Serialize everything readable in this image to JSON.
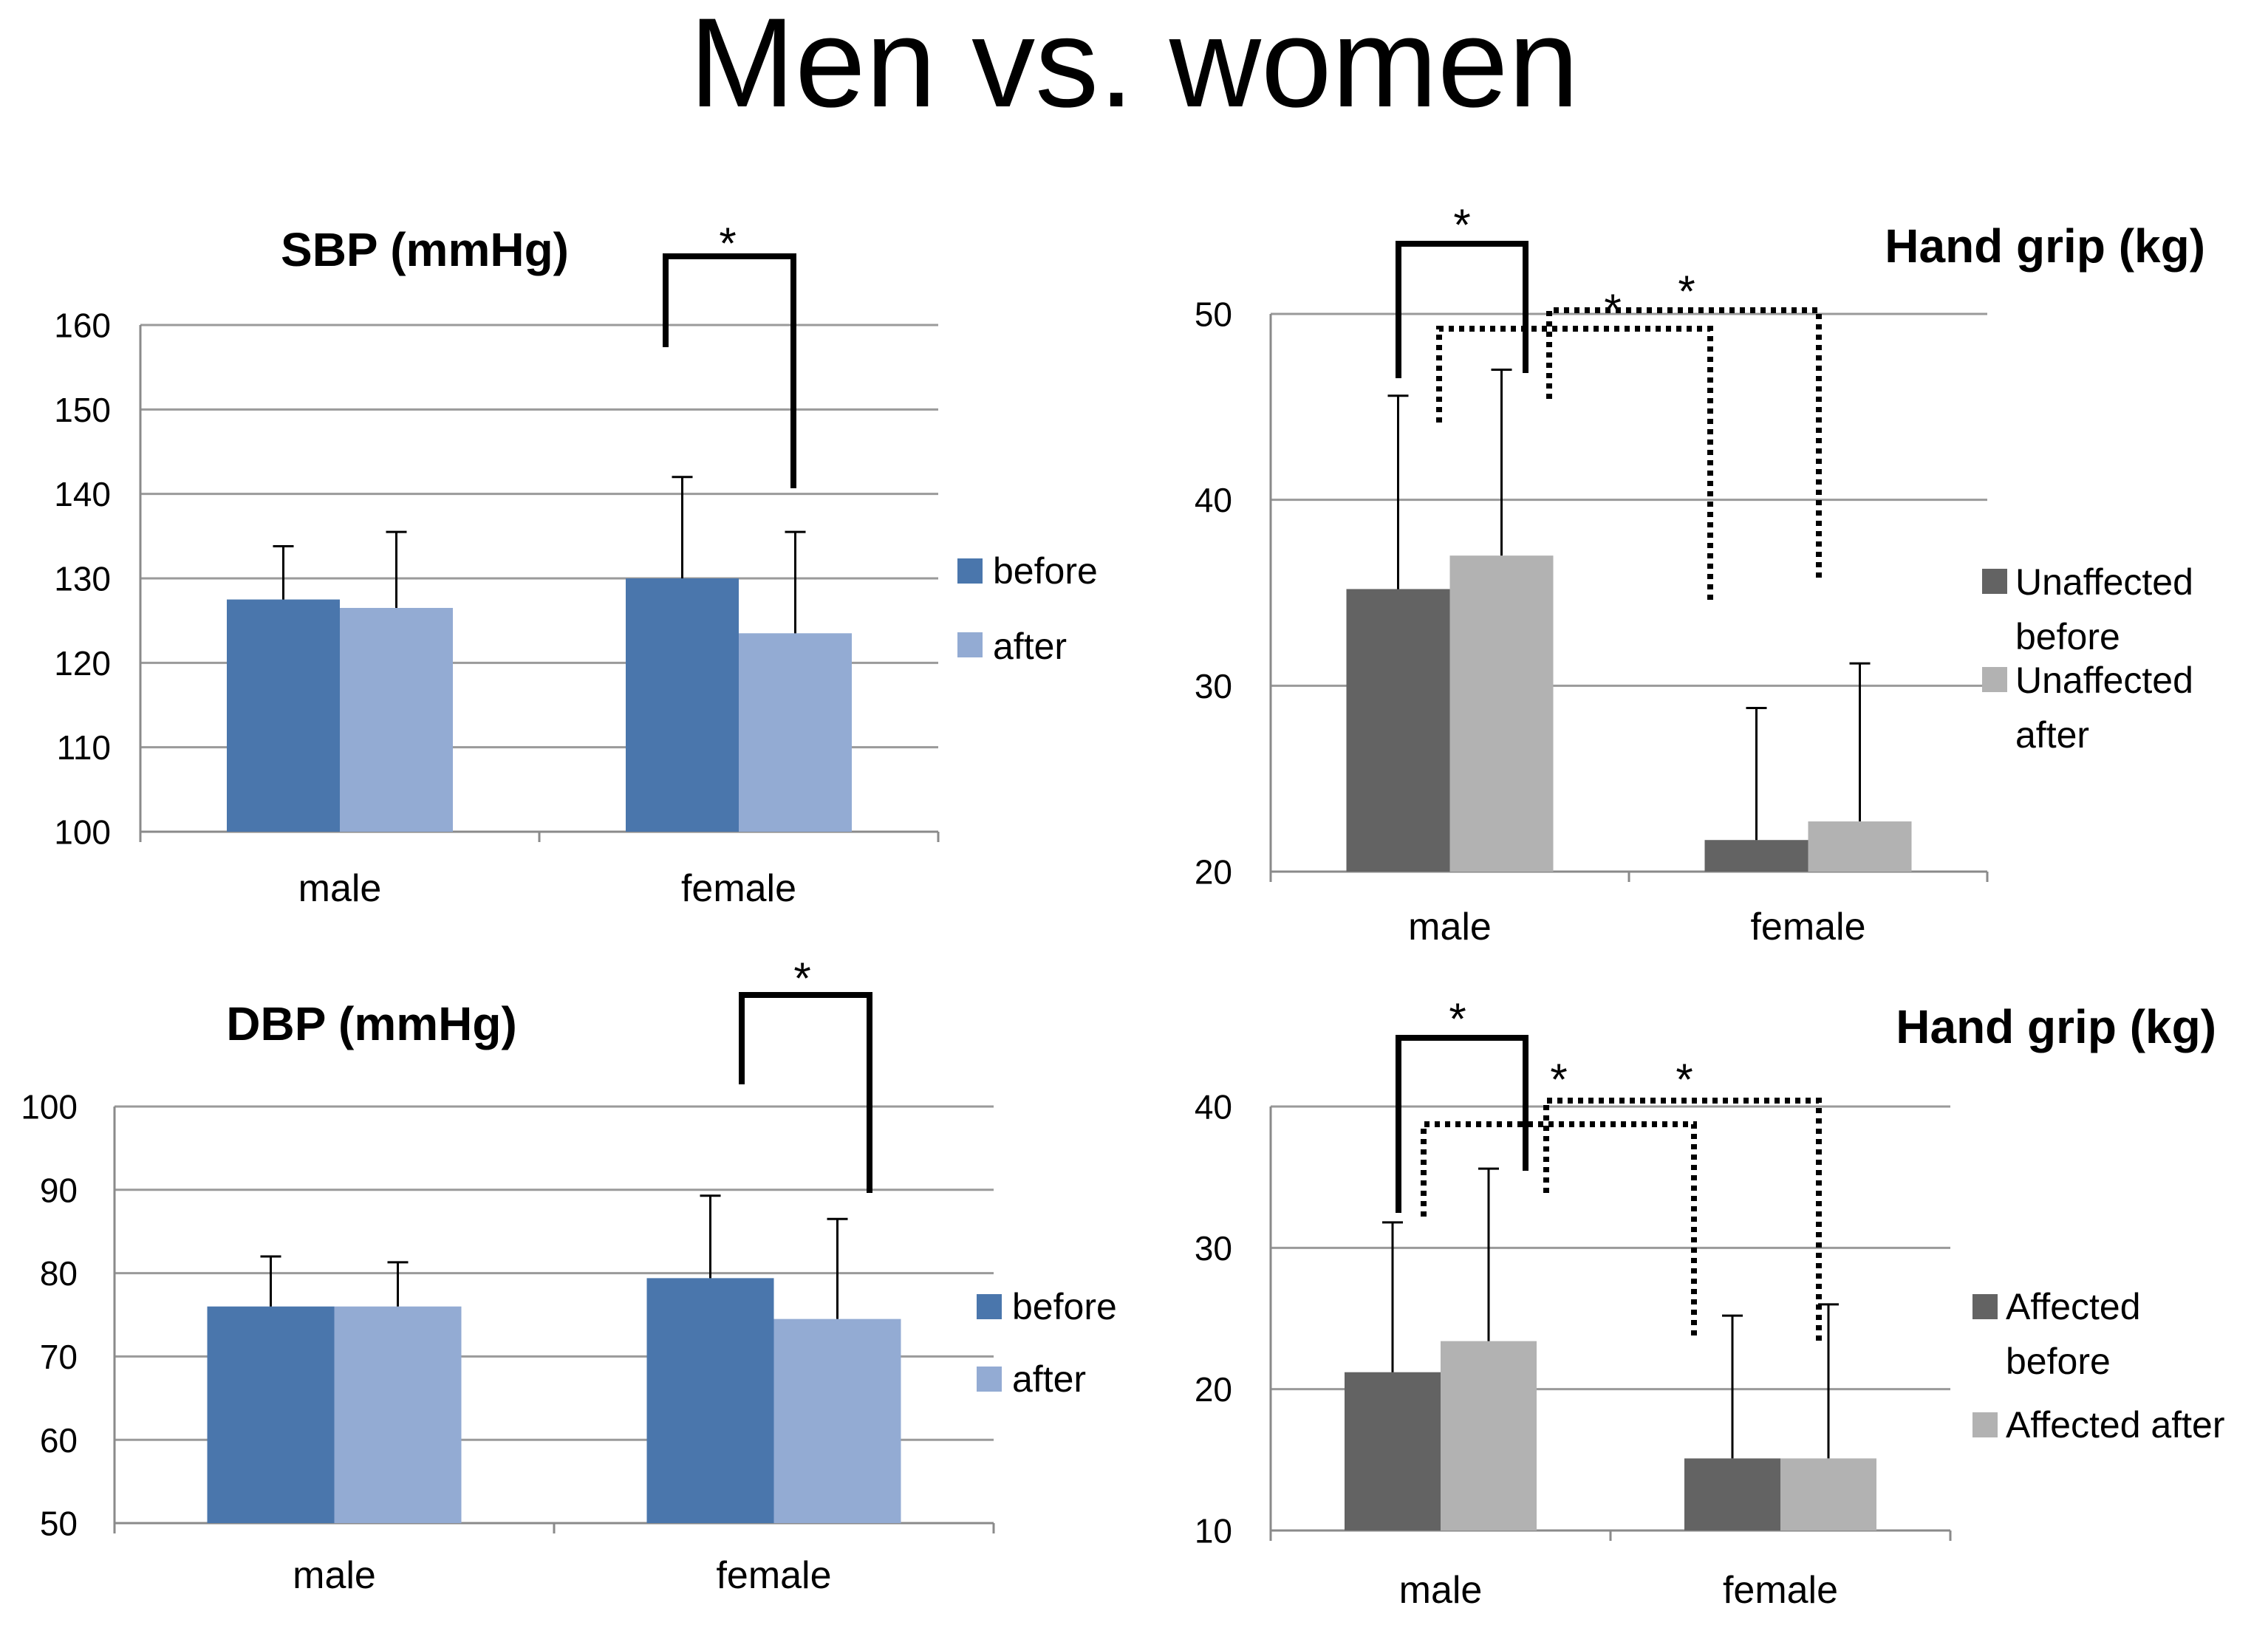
{
  "page": {
    "title": "Men vs. women"
  },
  "colors": {
    "bp_before": "#4A76AC",
    "bp_after": "#93ABD3",
    "grip_before": "#636363",
    "grip_after": "#B2B2B2"
  },
  "chart_data": [
    {
      "id": "sbp",
      "type": "bar",
      "title": "SBP (mmHg)",
      "categories": [
        "male",
        "female"
      ],
      "ylim": [
        100,
        160
      ],
      "yticks": [
        100,
        110,
        120,
        130,
        140,
        150,
        160
      ],
      "series": [
        {
          "name": "before",
          "values": [
            127.5,
            130
          ],
          "errors": [
            6.3,
            12
          ]
        },
        {
          "name": "after",
          "values": [
            126.5,
            123.5
          ],
          "errors": [
            9,
            12
          ]
        }
      ],
      "significance": [
        {
          "type": "solid",
          "label": "*"
        }
      ],
      "legend": "right"
    },
    {
      "id": "dbp",
      "type": "bar",
      "title": "DBP (mmHg)",
      "categories": [
        "male",
        "female"
      ],
      "ylim": [
        50,
        100
      ],
      "yticks": [
        50,
        60,
        70,
        80,
        90,
        100
      ],
      "series": [
        {
          "name": "before",
          "values": [
            76,
            79.4
          ],
          "errors": [
            6,
            9.9
          ]
        },
        {
          "name": "after",
          "values": [
            76,
            74.5
          ],
          "errors": [
            5.3,
            12
          ]
        }
      ],
      "significance": [
        {
          "type": "solid",
          "label": "*"
        }
      ],
      "legend": "right"
    },
    {
      "id": "grip_unaffected",
      "type": "bar",
      "title": "Hand grip (kg)",
      "categories": [
        "male",
        "female"
      ],
      "ylim": [
        20,
        50
      ],
      "yticks": [
        20,
        30,
        40,
        50
      ],
      "series": [
        {
          "name": "Unaffected before",
          "values": [
            35.2,
            21.7
          ],
          "errors": [
            10.4,
            7.1
          ]
        },
        {
          "name": "Unaffected after",
          "values": [
            37,
            22.7
          ],
          "errors": [
            10,
            8.5
          ]
        }
      ],
      "significance": [
        {
          "type": "solid",
          "label": "*"
        },
        {
          "type": "dotted",
          "label": "*"
        },
        {
          "type": "dotted",
          "label": "*"
        }
      ],
      "legend": "right"
    },
    {
      "id": "grip_affected",
      "type": "bar",
      "title": "Hand grip (kg)",
      "categories": [
        "male",
        "female"
      ],
      "ylim": [
        10,
        40
      ],
      "yticks": [
        10,
        20,
        30,
        40
      ],
      "series": [
        {
          "name": "Affected before",
          "values": [
            21.2,
            15.1
          ],
          "errors": [
            10.6,
            10.1
          ]
        },
        {
          "name": "Affected after",
          "values": [
            23.4,
            15.1
          ],
          "errors": [
            12.2,
            10.9
          ]
        }
      ],
      "significance": [
        {
          "type": "solid",
          "label": "*"
        },
        {
          "type": "dotted",
          "label": "*"
        },
        {
          "type": "dotted",
          "label": "*"
        }
      ],
      "legend": "right"
    }
  ]
}
